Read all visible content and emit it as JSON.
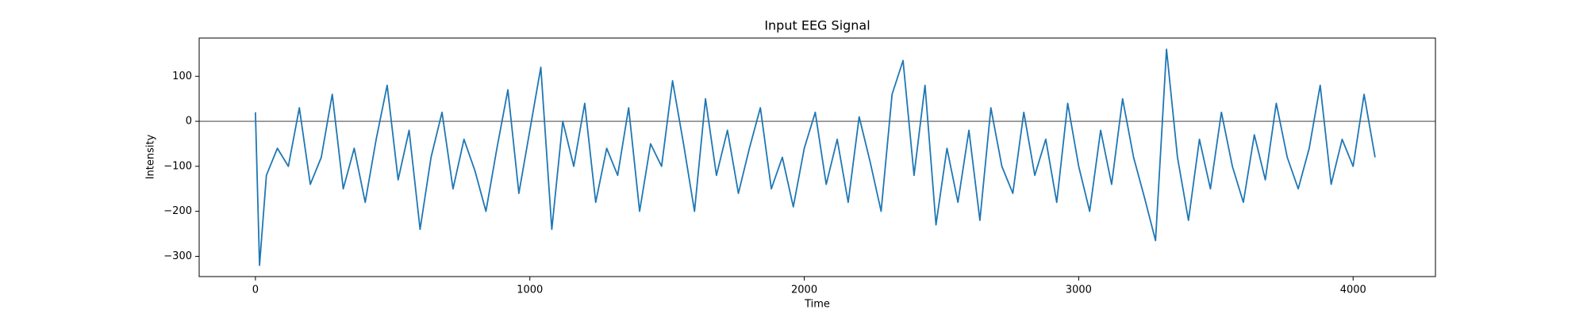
{
  "chart_data": {
    "type": "line",
    "title": "Input EEG Signal",
    "x_label": "Time",
    "y_label": "Intensity",
    "x": [
      0,
      15,
      40,
      80,
      120,
      160,
      200,
      240,
      280,
      320,
      360,
      400,
      440,
      480,
      520,
      560,
      600,
      640,
      680,
      720,
      760,
      800,
      840,
      880,
      920,
      960,
      1000,
      1040,
      1080,
      1120,
      1160,
      1200,
      1240,
      1280,
      1320,
      1360,
      1400,
      1440,
      1480,
      1520,
      1560,
      1600,
      1640,
      1680,
      1720,
      1760,
      1800,
      1840,
      1880,
      1920,
      1960,
      2000,
      2040,
      2080,
      2120,
      2160,
      2200,
      2240,
      2280,
      2320,
      2360,
      2400,
      2440,
      2480,
      2520,
      2560,
      2600,
      2640,
      2680,
      2720,
      2760,
      2800,
      2840,
      2880,
      2920,
      2960,
      3000,
      3040,
      3080,
      3120,
      3160,
      3200,
      3240,
      3280,
      3320,
      3360,
      3400,
      3440,
      3480,
      3520,
      3560,
      3600,
      3640,
      3680,
      3720,
      3760,
      3800,
      3840,
      3880,
      3920,
      3960,
      4000,
      4040,
      4080
    ],
    "series": [
      {
        "name": "EEG",
        "color": "#1f77b4",
        "values": [
          20,
          -320,
          -120,
          -60,
          -100,
          30,
          -140,
          -80,
          60,
          -150,
          -60,
          -180,
          -40,
          80,
          -130,
          -20,
          -240,
          -80,
          20,
          -150,
          -40,
          -110,
          -200,
          -60,
          70,
          -160,
          -20,
          120,
          -240,
          0,
          -100,
          40,
          -180,
          -60,
          -120,
          30,
          -200,
          -50,
          -100,
          90,
          -50,
          -200,
          50,
          -120,
          -20,
          -160,
          -60,
          30,
          -150,
          -80,
          -190,
          -60,
          20,
          -140,
          -40,
          -180,
          10,
          -90,
          -200,
          60,
          135,
          -120,
          80,
          -230,
          -60,
          -180,
          -20,
          -220,
          30,
          -100,
          -160,
          20,
          -120,
          -40,
          -180,
          40,
          -100,
          -200,
          -20,
          -140,
          50,
          -80,
          -170,
          -265,
          160,
          -80,
          -220,
          -40,
          -150,
          20,
          -100,
          -180,
          -30,
          -130,
          40,
          -80,
          -150,
          -60,
          80,
          -140,
          -40,
          -100,
          60,
          -80
        ]
      }
    ],
    "hlines": [
      0
    ],
    "xlim": [
      -205,
      4300
    ],
    "xticks": [
      0,
      1000,
      2000,
      3000,
      4000
    ],
    "ylim": [
      -345,
      185
    ],
    "yticks": [
      {
        "value": -300,
        "label": "−300"
      },
      {
        "value": -200,
        "label": "−200"
      },
      {
        "value": -100,
        "label": "−100"
      },
      0,
      100
    ],
    "grid": false
  }
}
